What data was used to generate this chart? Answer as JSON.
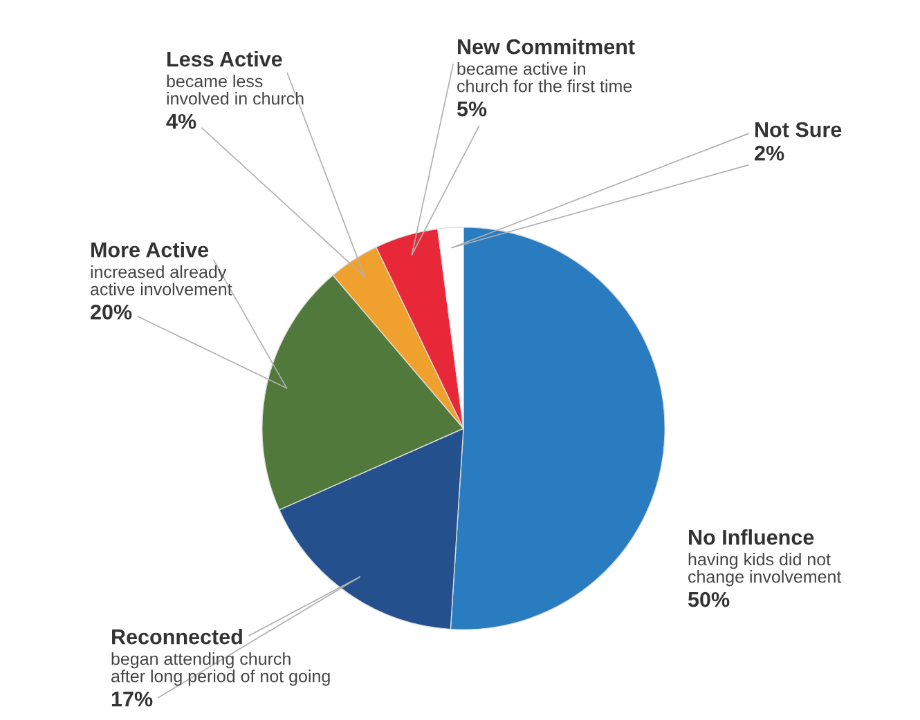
{
  "chart_data": {
    "type": "pie",
    "categories": [
      "No Influence",
      "Reconnected",
      "More Active",
      "Less Active",
      "New Commitment",
      "Not Sure"
    ],
    "values": [
      50,
      17,
      20,
      4,
      5,
      2
    ],
    "value_labels": [
      "50%",
      "17%",
      "20%",
      "4%",
      "5%",
      "2%"
    ],
    "colors": [
      "#2a7cc0",
      "#24508e",
      "#52793c",
      "#f0a02c",
      "#e82838",
      "#ffffff"
    ],
    "annotations": [
      "having kids did not\nchange involvement",
      "began attending church\nafter long period of not going",
      "increased already\nactive involvement",
      "became less\ninvolved in church",
      "became active in\nchurch for the first time",
      null
    ]
  }
}
